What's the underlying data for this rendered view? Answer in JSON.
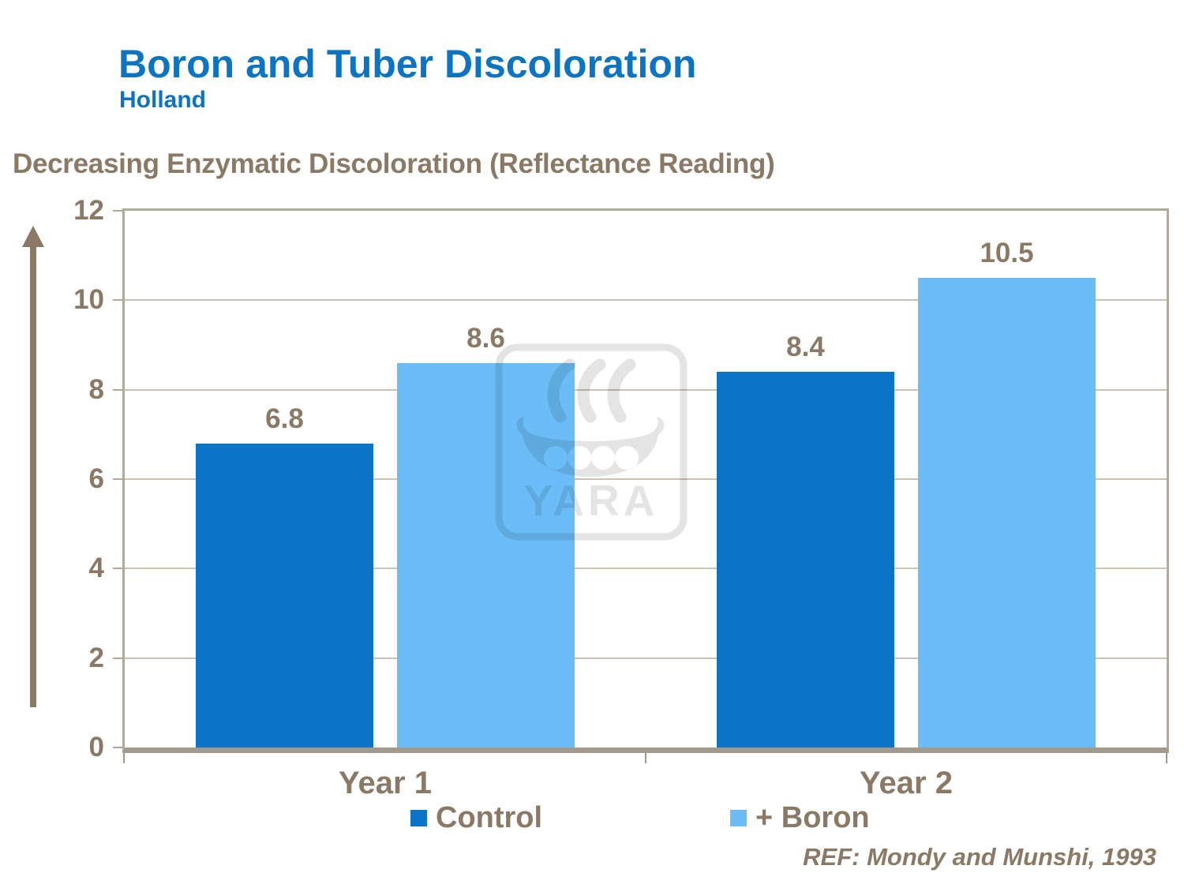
{
  "header": {
    "title": "Boron and Tuber Discoloration",
    "subtitle": "Holland"
  },
  "chart_data": {
    "type": "bar",
    "title": "Decreasing Enzymatic Discoloration (Reflectance Reading)",
    "categories": [
      "Year 1",
      "Year 2"
    ],
    "series": [
      {
        "name": "Control",
        "color": "#0b74c6",
        "values": [
          6.8,
          8.4
        ]
      },
      {
        "name": "+ Boron",
        "color": "#6bbdf8",
        "values": [
          8.6,
          10.5
        ]
      }
    ],
    "value_labels": [
      [
        "6.8",
        "8.4"
      ],
      [
        "8.6",
        "10.5"
      ]
    ],
    "ylim": [
      0,
      12
    ],
    "yticks": [
      0,
      2,
      4,
      6,
      8,
      10,
      12
    ],
    "grid": true,
    "legend_position": "bottom"
  },
  "footer": {
    "reference": "REF: Mondy and Munshi, 1993"
  },
  "watermark": {
    "name": "yara-viking-ship-logo",
    "text": "YARA"
  },
  "colors": {
    "title_blue": "#0d74c2",
    "text_brown": "#8a7964",
    "control_bar": "#0b74c6",
    "boron_bar": "#6bbdf8",
    "gridline": "#cbc2b4",
    "plot_border": "#b2a99c",
    "baseline": "#a29a8d"
  }
}
